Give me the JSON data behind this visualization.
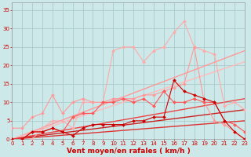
{
  "background_color": "#cce8e8",
  "grid_color": "#aacccc",
  "xlabel": "Vent moyen/en rafales ( km/h )",
  "x_ticks": [
    0,
    1,
    2,
    3,
    4,
    5,
    6,
    7,
    8,
    9,
    10,
    11,
    12,
    13,
    14,
    15,
    16,
    17,
    18,
    19,
    20,
    21,
    22,
    23
  ],
  "ylim": [
    0,
    37
  ],
  "xlim": [
    0,
    23
  ],
  "y_ticks": [
    0,
    5,
    10,
    15,
    20,
    25,
    30,
    35
  ],
  "lines": [
    {
      "x": [
        0,
        1,
        2,
        3,
        4,
        5,
        6,
        7,
        8,
        9,
        10,
        11,
        12,
        13,
        14,
        15,
        16,
        17,
        18,
        19,
        20,
        21,
        22,
        23
      ],
      "y": [
        0,
        0,
        0,
        3,
        5,
        5,
        3,
        10,
        10,
        10,
        24,
        25,
        25,
        21,
        24,
        25,
        29,
        32,
        25,
        24,
        23,
        9,
        10,
        8
      ],
      "color": "#ffaaaa",
      "marker": "D",
      "markersize": 2.0,
      "linewidth": 0.8,
      "linestyle": "-",
      "zorder": 3
    },
    {
      "x": [
        0,
        1,
        2,
        3,
        4,
        5,
        6,
        7,
        8,
        9,
        10,
        11,
        12,
        13,
        14,
        15,
        16,
        17,
        18,
        19,
        20,
        21,
        22,
        23
      ],
      "y": [
        3,
        3,
        6,
        7,
        12,
        7,
        10,
        11,
        10,
        10,
        11,
        11,
        11,
        12,
        12,
        13,
        14,
        15,
        25,
        10,
        5,
        4,
        2,
        0
      ],
      "color": "#ff9999",
      "marker": "D",
      "markersize": 2.0,
      "linewidth": 0.8,
      "linestyle": "-",
      "zorder": 3
    },
    {
      "x": [
        0,
        1,
        2,
        3,
        4,
        5,
        6,
        7,
        8,
        9,
        10,
        11,
        12,
        13,
        14,
        15,
        16,
        17,
        18,
        19,
        20,
        21,
        22,
        23
      ],
      "y": [
        0,
        0,
        2,
        2,
        3,
        2,
        6,
        7,
        7,
        10,
        10,
        11,
        10,
        11,
        9,
        13,
        10,
        10,
        11,
        10,
        10,
        5,
        4,
        2
      ],
      "color": "#ff5555",
      "marker": "D",
      "markersize": 2.0,
      "linewidth": 0.8,
      "linestyle": "-",
      "zorder": 3
    },
    {
      "x": [
        0,
        1,
        2,
        3,
        4,
        5,
        6,
        7,
        8,
        9,
        10,
        11,
        12,
        13,
        14,
        15,
        16,
        17,
        18,
        19,
        20,
        21,
        22,
        23
      ],
      "y": [
        0,
        0,
        2,
        2,
        3,
        2,
        1,
        3,
        4,
        4,
        4,
        4,
        5,
        5,
        6,
        6,
        16,
        13,
        12,
        11,
        10,
        5,
        2,
        0
      ],
      "color": "#cc0000",
      "marker": "D",
      "markersize": 2.0,
      "linewidth": 0.8,
      "linestyle": "-",
      "zorder": 3
    },
    {
      "x": [
        0,
        23
      ],
      "y": [
        0,
        24
      ],
      "color": "#ff9999",
      "marker": null,
      "linewidth": 1.0,
      "linestyle": "-",
      "zorder": 2
    },
    {
      "x": [
        0,
        23
      ],
      "y": [
        0,
        21
      ],
      "color": "#ffbbbb",
      "marker": null,
      "linewidth": 1.0,
      "linestyle": "-",
      "zorder": 2
    },
    {
      "x": [
        0,
        23
      ],
      "y": [
        0,
        11
      ],
      "color": "#ee4444",
      "marker": null,
      "linewidth": 1.0,
      "linestyle": "-",
      "zorder": 2
    },
    {
      "x": [
        0,
        23
      ],
      "y": [
        0,
        8
      ],
      "color": "#cc2222",
      "marker": null,
      "linewidth": 1.0,
      "linestyle": "-",
      "zorder": 2
    },
    {
      "x": [
        0,
        23
      ],
      "y": [
        0,
        5
      ],
      "color": "#dd3333",
      "marker": null,
      "linewidth": 1.0,
      "linestyle": "-",
      "zorder": 2
    }
  ],
  "tick_color": "#cc0000",
  "label_color": "#cc0000",
  "tick_fontsize": 5.0,
  "label_fontsize": 6.5
}
